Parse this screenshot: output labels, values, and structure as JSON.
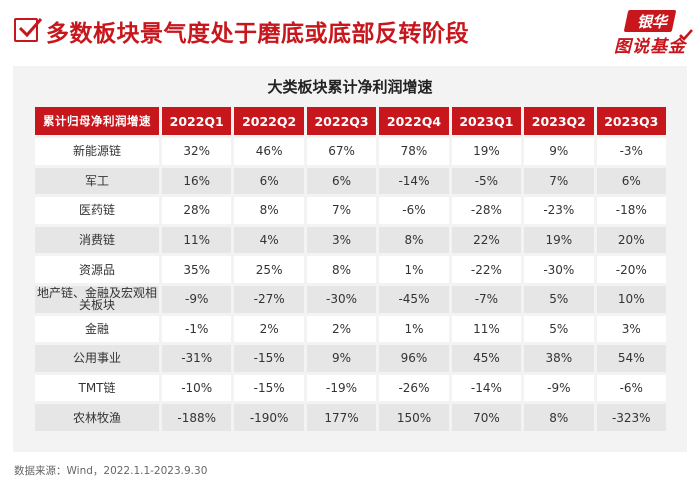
{
  "header": {
    "title": "多数板块景气度处于磨底或底部反转阶段",
    "logo_top": "银华",
    "logo_bottom": "图说基金",
    "accent_color": "#c8161d"
  },
  "table": {
    "title": "大类板块累计净利润增速",
    "corner_label": "累计归母净利润增速",
    "columns": [
      "2022Q1",
      "2022Q2",
      "2022Q3",
      "2022Q4",
      "2023Q1",
      "2023Q2",
      "2023Q3"
    ],
    "rows": [
      {
        "label": "新能源链",
        "values": [
          "32%",
          "46%",
          "67%",
          "78%",
          "19%",
          "9%",
          "-3%"
        ]
      },
      {
        "label": "军工",
        "values": [
          "16%",
          "6%",
          "6%",
          "-14%",
          "-5%",
          "7%",
          "6%"
        ]
      },
      {
        "label": "医药链",
        "values": [
          "28%",
          "8%",
          "7%",
          "-6%",
          "-28%",
          "-23%",
          "-18%"
        ]
      },
      {
        "label": "消费链",
        "values": [
          "11%",
          "4%",
          "3%",
          "8%",
          "22%",
          "19%",
          "20%"
        ]
      },
      {
        "label": "资源品",
        "values": [
          "35%",
          "25%",
          "8%",
          "1%",
          "-22%",
          "-30%",
          "-20%"
        ]
      },
      {
        "label": "地产链、金融及宏观相关板块",
        "values": [
          "-9%",
          "-27%",
          "-30%",
          "-45%",
          "-7%",
          "5%",
          "10%"
        ]
      },
      {
        "label": "金融",
        "values": [
          "-1%",
          "2%",
          "2%",
          "1%",
          "11%",
          "5%",
          "3%"
        ]
      },
      {
        "label": "公用事业",
        "values": [
          "-31%",
          "-15%",
          "9%",
          "96%",
          "45%",
          "38%",
          "54%"
        ]
      },
      {
        "label": "TMT链",
        "values": [
          "-10%",
          "-15%",
          "-19%",
          "-26%",
          "-14%",
          "-9%",
          "-6%"
        ]
      },
      {
        "label": "农林牧渔",
        "values": [
          "-188%",
          "-190%",
          "177%",
          "150%",
          "70%",
          "8%",
          "-323%"
        ]
      }
    ]
  },
  "footer": {
    "source": "数据来源：Wind，2022.1.1-2023.9.30"
  }
}
